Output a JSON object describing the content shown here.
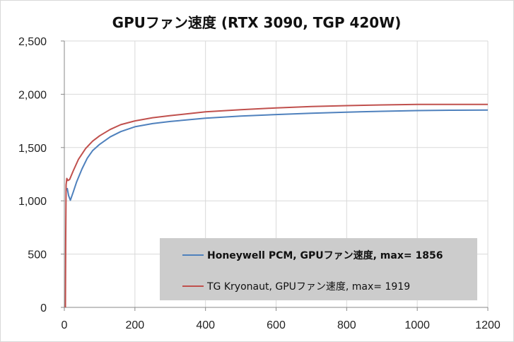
{
  "chart_data": {
    "type": "line",
    "title": "GPUファン速度 (RTX 3090, TGP 420W)",
    "xlabel": "",
    "ylabel": "",
    "xlim": [
      0,
      1200
    ],
    "ylim": [
      0,
      2500
    ],
    "xticks": [
      "0",
      "200",
      "400",
      "600",
      "800",
      "1000",
      "1200"
    ],
    "xtick_values": [
      0,
      200,
      400,
      600,
      800,
      1000,
      1200
    ],
    "yticks": [
      "0",
      "500",
      "1,000",
      "1,500",
      "2,000",
      "2,500"
    ],
    "ytick_values": [
      0,
      500,
      1000,
      1500,
      2000,
      2500
    ],
    "grid": true,
    "legend_position": "bottom-right",
    "series": [
      {
        "name": "Honeywell PCM, GPUファン速度, max= 1856",
        "color": "#4f81bd",
        "bold": true,
        "points": [
          [
            8,
            1120
          ],
          [
            12,
            1050
          ],
          [
            17,
            1005
          ],
          [
            25,
            1080
          ],
          [
            35,
            1180
          ],
          [
            50,
            1300
          ],
          [
            65,
            1400
          ],
          [
            80,
            1470
          ],
          [
            100,
            1530
          ],
          [
            130,
            1600
          ],
          [
            160,
            1650
          ],
          [
            200,
            1695
          ],
          [
            250,
            1725
          ],
          [
            300,
            1745
          ],
          [
            400,
            1775
          ],
          [
            500,
            1795
          ],
          [
            600,
            1810
          ],
          [
            700,
            1822
          ],
          [
            800,
            1832
          ],
          [
            900,
            1840
          ],
          [
            1000,
            1847
          ],
          [
            1100,
            1850
          ],
          [
            1200,
            1852
          ]
        ]
      },
      {
        "name": "TG Kryonaut, GPUファン速度, max= 1919",
        "color": "#c0504d",
        "bold": false,
        "points": [
          [
            3,
            0
          ],
          [
            4,
            700
          ],
          [
            5,
            1150
          ],
          [
            7,
            1210
          ],
          [
            10,
            1190
          ],
          [
            15,
            1200
          ],
          [
            25,
            1280
          ],
          [
            40,
            1390
          ],
          [
            60,
            1490
          ],
          [
            80,
            1560
          ],
          [
            100,
            1610
          ],
          [
            130,
            1670
          ],
          [
            160,
            1715
          ],
          [
            200,
            1750
          ],
          [
            250,
            1780
          ],
          [
            300,
            1800
          ],
          [
            400,
            1835
          ],
          [
            500,
            1855
          ],
          [
            600,
            1872
          ],
          [
            700,
            1885
          ],
          [
            800,
            1893
          ],
          [
            900,
            1900
          ],
          [
            1000,
            1905
          ],
          [
            1100,
            1905
          ],
          [
            1200,
            1905
          ]
        ]
      }
    ]
  }
}
